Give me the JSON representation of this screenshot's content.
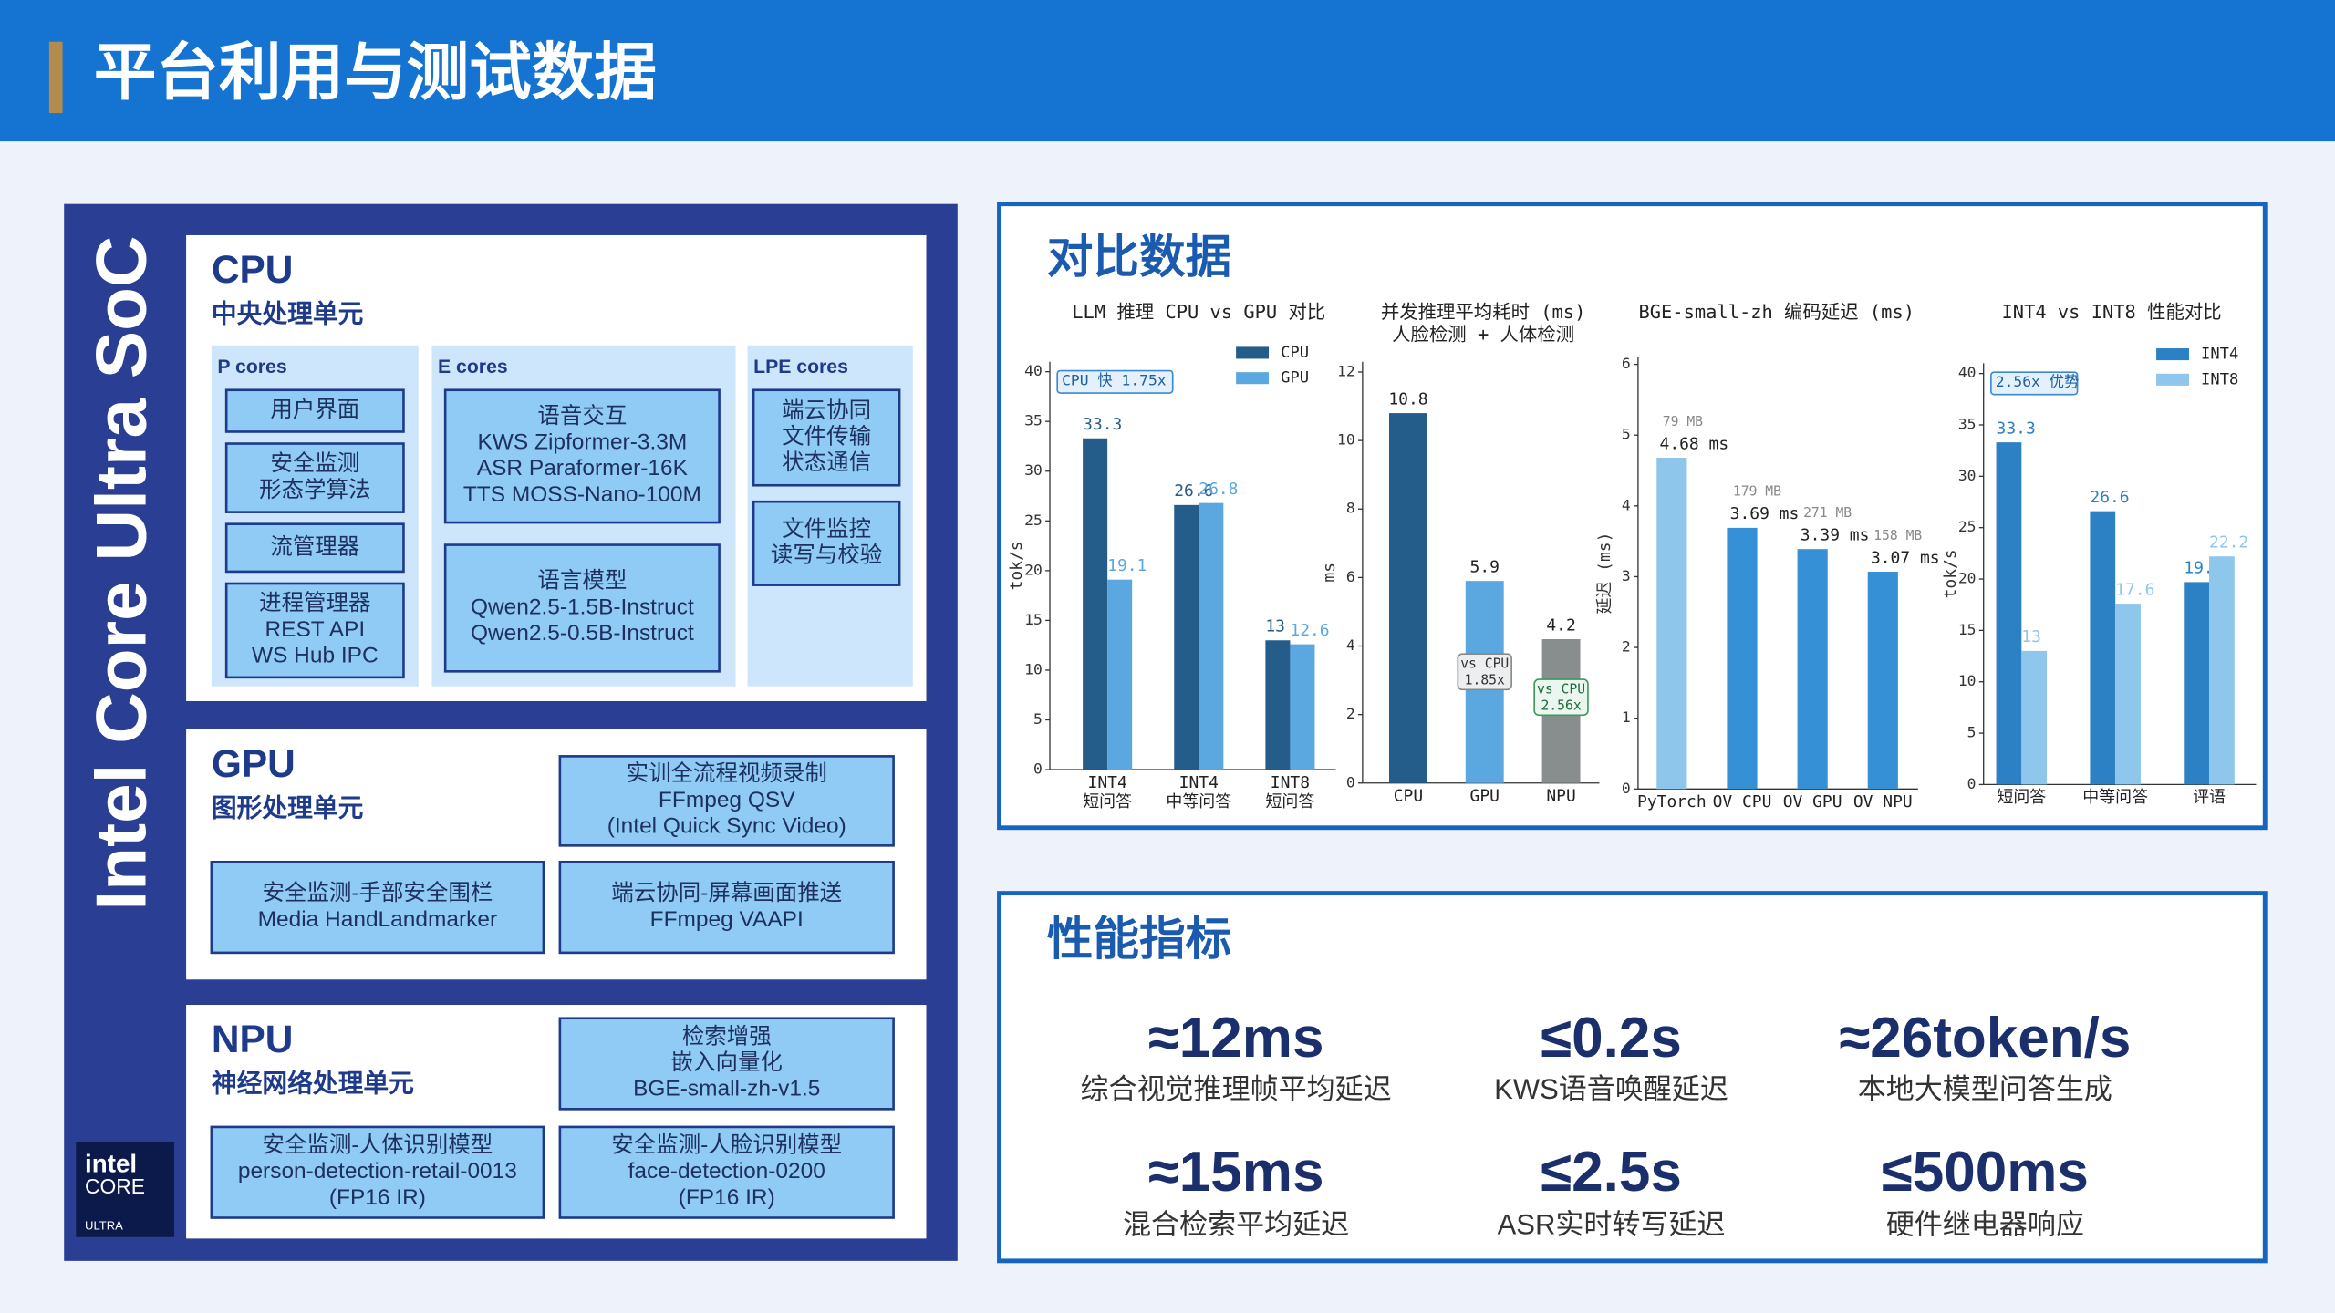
{
  "header": {
    "title": "平台利用与测试数据"
  },
  "soc": {
    "title": "Intel Core Ultra SoC",
    "logo": [
      "intel",
      "CORE",
      "ULTRA"
    ]
  },
  "units": [
    {
      "title": "CPU",
      "subtitle": "中央处理单元",
      "groups": [
        {
          "name": "P cores",
          "items": [
            [
              "用户界面"
            ],
            [
              "安全监测",
              "形态学算法"
            ],
            [
              "流管理器"
            ],
            [
              "进程管理器",
              "REST API",
              "WS Hub IPC"
            ]
          ]
        },
        {
          "name": "E cores",
          "items": [
            [
              "语音交互",
              "KWS Zipformer-3.3M",
              "ASR Paraformer-16K",
              "TTS MOSS-Nano-100M"
            ],
            [
              "语言模型",
              "Qwen2.5-1.5B-Instruct",
              "Qwen2.5-0.5B-Instruct"
            ]
          ]
        },
        {
          "name": "LPE cores",
          "items": [
            [
              "端云协同",
              "文件传输",
              "状态通信"
            ],
            [
              "文件监控",
              "读写与校验"
            ]
          ]
        }
      ]
    },
    {
      "title": "GPU",
      "subtitle": "图形处理单元",
      "items": [
        [
          "实训全流程视频录制",
          "FFmpeg QSV",
          "(Intel Quick Sync Video)"
        ],
        [
          "安全监测-手部安全围栏",
          "Media HandLandmarker"
        ],
        [
          "端云协同-屏幕画面推送",
          "FFmpeg VAAPI"
        ]
      ]
    },
    {
      "title": "NPU",
      "subtitle": "神经网络处理单元",
      "items": [
        [
          "检索增强",
          "嵌入向量化",
          "BGE-small-zh-v1.5"
        ],
        [
          "安全监测-人体识别模型",
          "person-detection-retail-0013",
          "(FP16 IR)"
        ],
        [
          "安全监测-人脸识别模型",
          "face-detection-0200",
          "(FP16 IR)"
        ]
      ]
    }
  ],
  "compare": {
    "title": "对比数据"
  },
  "chart_data": [
    {
      "type": "bar",
      "title": [
        "LLM 推理 CPU vs GPU 对比"
      ],
      "y_label": "tok/s",
      "categories": [
        [
          "INT4",
          "短问答"
        ],
        [
          "INT4",
          "中等问答"
        ],
        [
          "INT8",
          "短问答"
        ]
      ],
      "series": [
        {
          "name": "CPU",
          "color": "#245d8a",
          "values": [
            33.3,
            26.6,
            13
          ]
        },
        {
          "name": "GPU",
          "color": "#5aa8df",
          "values": [
            19.1,
            26.8,
            12.6
          ]
        }
      ],
      "ylim": [
        0,
        41
      ],
      "yticks": [
        0,
        5,
        10,
        15,
        20,
        25,
        30,
        35,
        40
      ],
      "legend": "upper right",
      "annotations": [
        [
          "CPU 快 1.75x"
        ]
      ]
    },
    {
      "type": "bar",
      "title": [
        "并发推理平均耗时 (ms)",
        "人脸检测 + 人体检测"
      ],
      "y_label": "ms",
      "categories": [
        [
          "CPU"
        ],
        [
          "GPU"
        ],
        [
          "NPU"
        ]
      ],
      "values": [
        10.8,
        5.9,
        4.2
      ],
      "colors": [
        "#245d8a",
        "#5aa8df",
        "#888e8e"
      ],
      "ylim": [
        0,
        12.3
      ],
      "yticks": [
        0,
        2,
        4,
        6,
        8,
        10,
        12
      ],
      "annotations": [
        [
          "vs CPU",
          "1.85x"
        ],
        [
          "vs CPU",
          "2.56x"
        ]
      ]
    },
    {
      "type": "bar",
      "title": [
        "BGE-small-zh  编码延迟 (ms)"
      ],
      "y_label": "延迟 (ms)",
      "categories": [
        [
          "PyTorch"
        ],
        [
          "OV CPU"
        ],
        [
          "OV GPU"
        ],
        [
          "OV NPU"
        ]
      ],
      "values": [
        4.68,
        3.69,
        3.39,
        3.07
      ],
      "value_labels": [
        "4.68 ms",
        "3.69 ms",
        "3.39 ms",
        "3.07 ms"
      ],
      "memory_labels": [
        "79 MB",
        "179 MB",
        "271 MB",
        "158 MB"
      ],
      "colors": [
        "#8ec5ea",
        "#3590d6",
        "#3590d6",
        "#3590d6"
      ],
      "ylim": [
        0,
        6.1
      ],
      "yticks": [
        0,
        1,
        2,
        3,
        4,
        5,
        6
      ]
    },
    {
      "type": "bar",
      "title": [
        "INT4 vs INT8  性能对比"
      ],
      "y_label": "tok/s",
      "categories": [
        [
          "短问答"
        ],
        [
          "中等问答"
        ],
        [
          "评语"
        ]
      ],
      "series": [
        {
          "name": "INT4",
          "color": "#2c80c4",
          "values": [
            33.3,
            26.6,
            19.7
          ]
        },
        {
          "name": "INT8",
          "color": "#8fc6ec",
          "values": [
            13,
            17.6,
            22.2
          ]
        }
      ],
      "ylim": [
        0,
        41
      ],
      "yticks": [
        0,
        5,
        10,
        15,
        20,
        25,
        30,
        35,
        40
      ],
      "legend": "upper right",
      "annotations": [
        [
          "2.56x 优势"
        ]
      ]
    }
  ],
  "metrics": {
    "title": "性能指标",
    "items": [
      {
        "value": "≈12ms",
        "label": "综合视觉推理帧平均延迟"
      },
      {
        "value": "≤0.2s",
        "label": "KWS语音唤醒延迟"
      },
      {
        "value": "≈26token/s",
        "label": "本地大模型问答生成"
      },
      {
        "value": "≈15ms",
        "label": "混合检索平均延迟"
      },
      {
        "value": "≤2.5s",
        "label": "ASR实时转写延迟"
      },
      {
        "value": "≤500ms",
        "label": "硬件继电器响应"
      }
    ]
  }
}
